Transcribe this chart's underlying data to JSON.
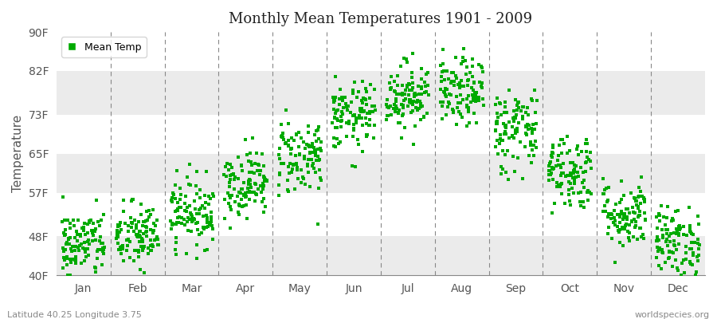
{
  "title": "Monthly Mean Temperatures 1901 - 2009",
  "ylabel": "Temperature",
  "latitude_label": "Latitude 40.25 Longitude 3.75",
  "watermark": "worldspecies.org",
  "legend_label": "Mean Temp",
  "dot_color": "#00aa00",
  "background_color": "#ffffff",
  "plot_bg_color": "#ffffff",
  "band_color": "#ebebeb",
  "ytick_labels": [
    "40F",
    "48F",
    "57F",
    "65F",
    "73F",
    "82F",
    "90F"
  ],
  "ytick_values": [
    40,
    48,
    57,
    65,
    73,
    82,
    90
  ],
  "ylim": [
    40,
    90
  ],
  "months": [
    "Jan",
    "Feb",
    "Mar",
    "Apr",
    "May",
    "Jun",
    "Jul",
    "Aug",
    "Sep",
    "Oct",
    "Nov",
    "Dec"
  ],
  "month_centers": [
    0.5,
    1.5,
    2.5,
    3.5,
    4.5,
    5.5,
    6.5,
    7.5,
    8.5,
    9.5,
    10.5,
    11.5
  ],
  "month_boundaries": [
    0,
    1,
    2,
    3,
    4,
    5,
    6,
    7,
    8,
    9,
    10,
    11,
    12
  ],
  "mean_temps_by_month": {
    "Jan": 46.5,
    "Feb": 48.0,
    "Mar": 53.0,
    "Apr": 59.0,
    "May": 64.5,
    "Jun": 72.5,
    "Jul": 77.0,
    "Aug": 77.5,
    "Sep": 70.0,
    "Oct": 61.5,
    "Nov": 52.5,
    "Dec": 47.0
  },
  "spread_by_month": {
    "Jan": 3.5,
    "Feb": 3.5,
    "Mar": 3.5,
    "Apr": 3.5,
    "May": 4.0,
    "Jun": 3.5,
    "Jul": 3.5,
    "Aug": 3.5,
    "Sep": 4.5,
    "Oct": 4.0,
    "Nov": 3.5,
    "Dec": 3.5
  },
  "n_points": 109,
  "seed": 42
}
